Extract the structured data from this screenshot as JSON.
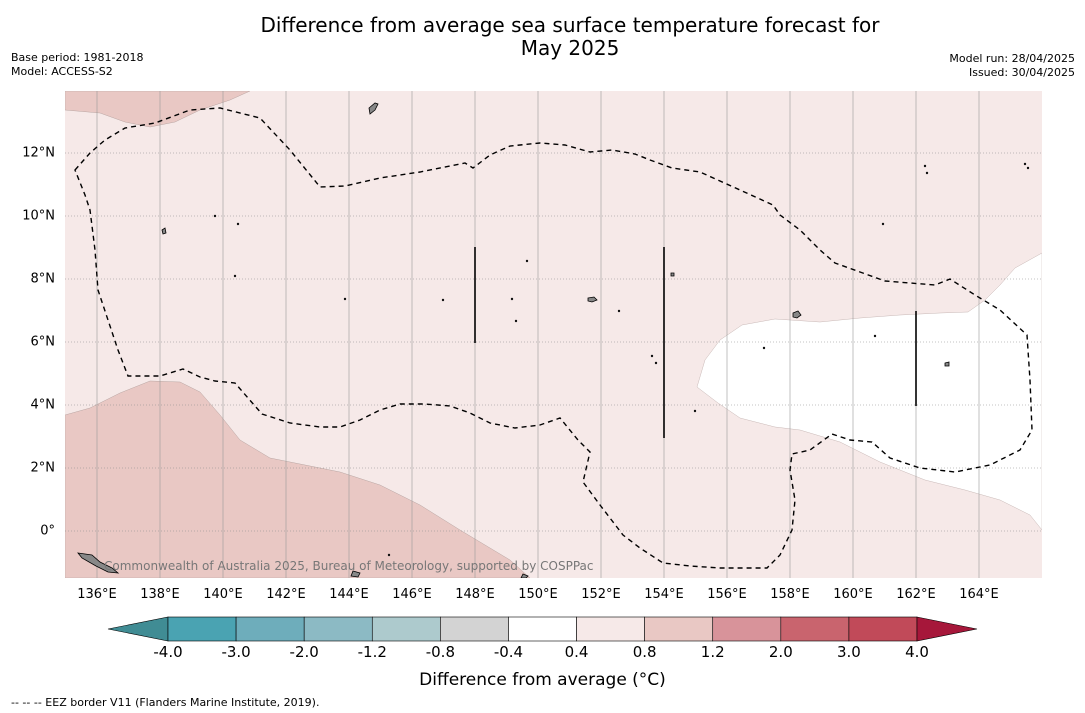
{
  "title_line1": "Difference from average sea surface temperature forecast for",
  "title_line2": "May 2025",
  "base_period": "Base period: 1981-2018",
  "model": "Model: ACCESS-S2",
  "model_run": "Model run: 28/04/2025",
  "issued": "Issued: 30/04/2025",
  "copyright": "Commonwealth of Australia 2025, Bureau of Meteorology, supported by COSPPac",
  "footnote": "--  --  -- EEZ border V11 (Flanders Marine Institute, 2019).",
  "colorbar": {
    "title": "Difference from average (°C)",
    "tick_labels": [
      "-4.0",
      "-3.0",
      "-2.0",
      "-1.2",
      "-0.8",
      "-0.4",
      "0.4",
      "0.8",
      "1.2",
      "2.0",
      "3.0",
      "4.0"
    ],
    "colors": [
      "#408c94",
      "#4aa3b2",
      "#6eadbb",
      "#8cbac4",
      "#adcacd",
      "#d3d3d3",
      "#ffffff",
      "#f6e9e8",
      "#e9c8c4",
      "#d8939a",
      "#c9646e",
      "#c14a59",
      "#a6173a"
    ]
  },
  "map": {
    "lon_labels": [
      "136°E",
      "138°E",
      "140°E",
      "142°E",
      "144°E",
      "146°E",
      "148°E",
      "150°E",
      "152°E",
      "154°E",
      "156°E",
      "158°E",
      "160°E",
      "162°E",
      "164°E"
    ],
    "lat_labels": [
      "12°N",
      "10°N",
      "8°N",
      "6°N",
      "4°N",
      "2°N",
      "0°"
    ],
    "lon_values": [
      136,
      138,
      140,
      142,
      144,
      146,
      148,
      150,
      152,
      154,
      156,
      158,
      160,
      162,
      164
    ],
    "lat_values": [
      12,
      10,
      8,
      6,
      4,
      2,
      0
    ],
    "background_class_color": "#f6e9e8",
    "warm_class_color": "#e9c8c4",
    "neutral_class_color": "#ffffff"
  }
}
